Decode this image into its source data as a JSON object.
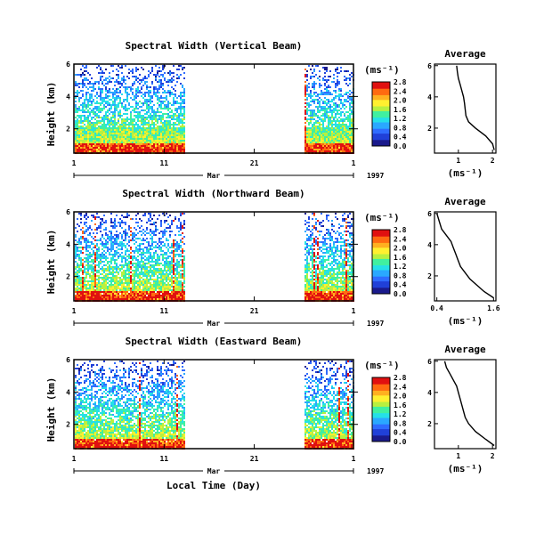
{
  "chart_data": [
    {
      "type": "heatmap",
      "title": "Spectral Width (Vertical Beam)",
      "ylabel": "Height (km)",
      "yticks": [
        "2",
        "4",
        "6"
      ],
      "xticks": [
        "1",
        "11",
        "21",
        "1"
      ],
      "month_label": "Mar",
      "year_label": "1997",
      "xlim": [
        1,
        32
      ],
      "ylim": [
        0.5,
        6
      ],
      "data_gap": [
        13.3,
        26.4
      ],
      "colorbar": {
        "unit": "(ms⁻¹)",
        "labels": [
          "0.0",
          "0.4",
          "0.8",
          "1.2",
          "1.6",
          "2.0",
          "2.4",
          "2.8"
        ]
      },
      "profile": {
        "title": "Average",
        "xlabel": "(ms⁻¹)",
        "xticks": [
          "1",
          "2"
        ],
        "yticks": [
          "2",
          "4",
          "6"
        ],
        "xlim": [
          0.3,
          2.1
        ],
        "points": [
          [
            0.95,
            6.0
          ],
          [
            0.97,
            5.6
          ],
          [
            1.0,
            5.2
          ],
          [
            1.05,
            4.8
          ],
          [
            1.1,
            4.4
          ],
          [
            1.15,
            4.0
          ],
          [
            1.18,
            3.6
          ],
          [
            1.2,
            3.2
          ],
          [
            1.22,
            2.8
          ],
          [
            1.3,
            2.4
          ],
          [
            1.5,
            2.0
          ],
          [
            1.8,
            1.5
          ],
          [
            2.0,
            1.0
          ],
          [
            2.05,
            0.6
          ]
        ]
      }
    },
    {
      "type": "heatmap",
      "title": "Spectral Width (Northward Beam)",
      "ylabel": "Height (km)",
      "yticks": [
        "2",
        "4",
        "6"
      ],
      "xticks": [
        "1",
        "11",
        "21",
        "1"
      ],
      "month_label": "Mar",
      "year_label": "1997",
      "xlim": [
        1,
        32
      ],
      "ylim": [
        0.5,
        6
      ],
      "data_gap": [
        13.3,
        26.4
      ],
      "colorbar": {
        "unit": "(ms⁻¹)",
        "labels": [
          "0.0",
          "0.4",
          "0.8",
          "1.2",
          "1.6",
          "2.0",
          "2.4",
          "2.8"
        ]
      },
      "profile": {
        "title": "Average",
        "xlabel": "(ms⁻¹)",
        "xticks": [
          "0.4",
          "1.6"
        ],
        "yticks": [
          "2",
          "4",
          "6"
        ],
        "xlim": [
          0.35,
          1.65
        ],
        "points": [
          [
            0.4,
            6.0
          ],
          [
            0.45,
            5.5
          ],
          [
            0.5,
            5.0
          ],
          [
            0.6,
            4.6
          ],
          [
            0.7,
            4.2
          ],
          [
            0.75,
            3.8
          ],
          [
            0.8,
            3.4
          ],
          [
            0.85,
            3.0
          ],
          [
            0.9,
            2.6
          ],
          [
            1.0,
            2.2
          ],
          [
            1.1,
            1.8
          ],
          [
            1.25,
            1.4
          ],
          [
            1.4,
            1.0
          ],
          [
            1.6,
            0.6
          ]
        ]
      }
    },
    {
      "type": "heatmap",
      "title": "Spectral Width (Eastward Beam)",
      "ylabel": "Height (km)",
      "xlabel": "Local Time (Day)",
      "yticks": [
        "2",
        "4",
        "6"
      ],
      "xticks": [
        "1",
        "11",
        "21",
        "1"
      ],
      "month_label": "Mar",
      "year_label": "1997",
      "xlim": [
        1,
        32
      ],
      "ylim": [
        0.5,
        6
      ],
      "data_gap": [
        13.3,
        26.4
      ],
      "colorbar": {
        "unit": "(ms⁻¹)",
        "labels": [
          "0.0",
          "0.4",
          "0.8",
          "1.2",
          "1.6",
          "2.0",
          "2.4",
          "2.8"
        ]
      },
      "profile": {
        "title": "Average",
        "xlabel": "(ms⁻¹)",
        "xticks": [
          "1",
          "2"
        ],
        "yticks": [
          "2",
          "4",
          "6"
        ],
        "xlim": [
          0.3,
          2.1
        ],
        "points": [
          [
            0.6,
            6.0
          ],
          [
            0.65,
            5.6
          ],
          [
            0.75,
            5.2
          ],
          [
            0.85,
            4.8
          ],
          [
            0.95,
            4.4
          ],
          [
            1.0,
            4.0
          ],
          [
            1.05,
            3.6
          ],
          [
            1.1,
            3.2
          ],
          [
            1.15,
            2.8
          ],
          [
            1.2,
            2.4
          ],
          [
            1.3,
            2.0
          ],
          [
            1.5,
            1.5
          ],
          [
            1.8,
            1.0
          ],
          [
            2.05,
            0.6
          ]
        ]
      }
    }
  ],
  "colors": {
    "scale": [
      "#1a1a8c",
      "#2040d8",
      "#2f6cff",
      "#2aa8ff",
      "#25e0e8",
      "#40f0a0",
      "#b8f040",
      "#fff030",
      "#ffb020",
      "#ff6a10",
      "#e01010"
    ]
  }
}
